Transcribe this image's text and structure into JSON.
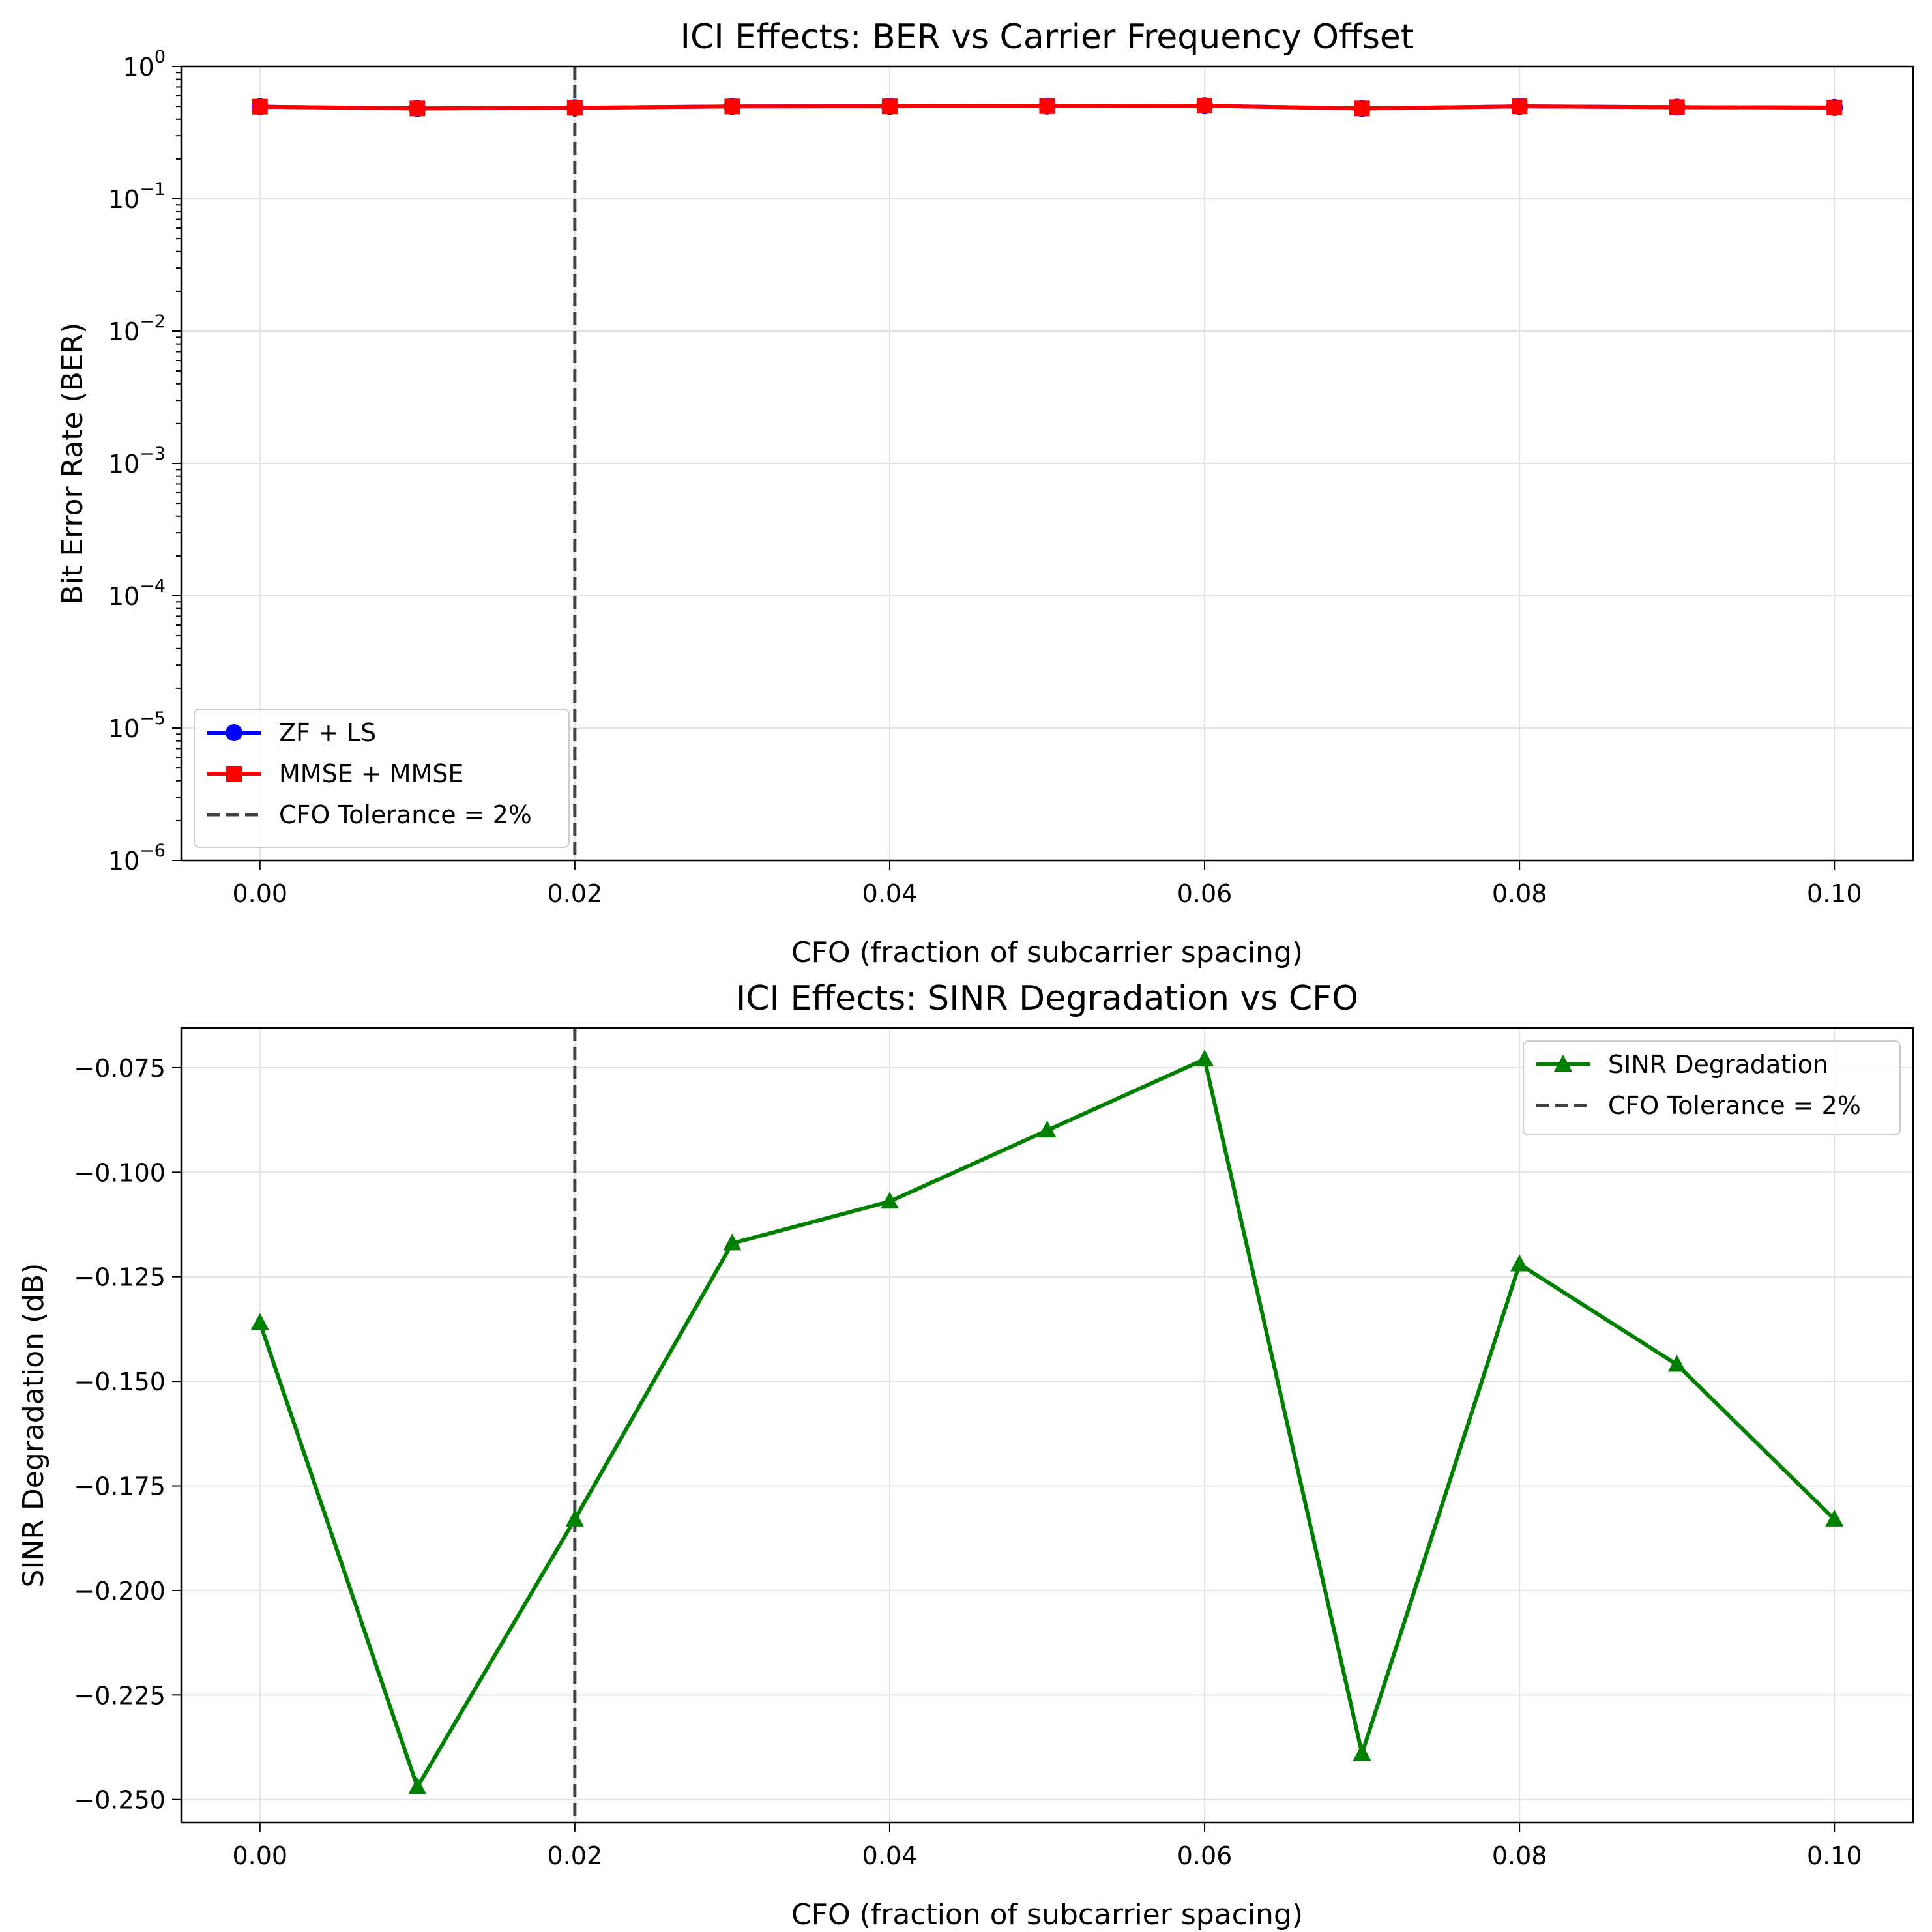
{
  "chart_data": [
    {
      "type": "line",
      "title": "ICI Effects: BER vs Carrier Frequency Offset",
      "xlabel": "CFO (fraction of subcarrier spacing)",
      "ylabel": "Bit Error Rate (BER)",
      "yscale": "log",
      "xlim": [
        -0.005,
        0.105
      ],
      "ylim": [
        1e-06,
        1
      ],
      "grid": true,
      "legend_position": "lower-left",
      "x_ticks": [
        "0.00",
        "0.02",
        "0.04",
        "0.06",
        "0.08",
        "0.10"
      ],
      "y_ticks": [
        {
          "base": "10",
          "exp": "−6"
        },
        {
          "base": "10",
          "exp": "−5"
        },
        {
          "base": "10",
          "exp": "−4"
        },
        {
          "base": "10",
          "exp": "−3"
        },
        {
          "base": "10",
          "exp": "−2"
        },
        {
          "base": "10",
          "exp": "−1"
        },
        {
          "base": "10",
          "exp": "0"
        }
      ],
      "x": [
        0.0,
        0.01,
        0.02,
        0.03,
        0.04,
        0.05,
        0.06,
        0.07,
        0.08,
        0.09,
        0.1
      ],
      "series": [
        {
          "name": "ZF + LS",
          "color": "#0000ff",
          "marker": "circle",
          "values": [
            0.497,
            0.482,
            0.488,
            0.499,
            0.5,
            0.502,
            0.505,
            0.482,
            0.5,
            0.493,
            0.49
          ]
        },
        {
          "name": "MMSE + MMSE",
          "color": "#ff0000",
          "marker": "square",
          "values": [
            0.497,
            0.482,
            0.488,
            0.499,
            0.5,
            0.502,
            0.505,
            0.482,
            0.5,
            0.493,
            0.49
          ]
        }
      ],
      "vline": {
        "x": 0.02,
        "label": "CFO Tolerance = 2%",
        "color": "#404040",
        "style": "dashed"
      }
    },
    {
      "type": "line",
      "title": "ICI Effects: SINR Degradation vs CFO",
      "xlabel": "CFO (fraction of subcarrier spacing)",
      "ylabel": "SINR Degradation (dB)",
      "yscale": "linear",
      "xlim": [
        -0.005,
        0.105
      ],
      "ylim": [
        -0.2555,
        -0.0655
      ],
      "grid": true,
      "legend_position": "upper-right",
      "x_ticks": [
        "0.00",
        "0.02",
        "0.04",
        "0.06",
        "0.08",
        "0.10"
      ],
      "y_ticks": [
        "−0.250",
        "−0.225",
        "−0.200",
        "−0.175",
        "−0.150",
        "−0.125",
        "−0.100",
        "−0.075"
      ],
      "x": [
        0.0,
        0.01,
        0.02,
        0.03,
        0.04,
        0.05,
        0.06,
        0.07,
        0.08,
        0.09,
        0.1
      ],
      "series": [
        {
          "name": "SINR Degradation",
          "color": "#008000",
          "marker": "triangle",
          "values": [
            -0.136,
            -0.247,
            -0.183,
            -0.117,
            -0.107,
            -0.09,
            -0.073,
            -0.239,
            -0.122,
            -0.146,
            -0.183
          ]
        }
      ],
      "vline": {
        "x": 0.02,
        "label": "CFO Tolerance = 2%",
        "color": "#404040",
        "style": "dashed"
      }
    }
  ]
}
